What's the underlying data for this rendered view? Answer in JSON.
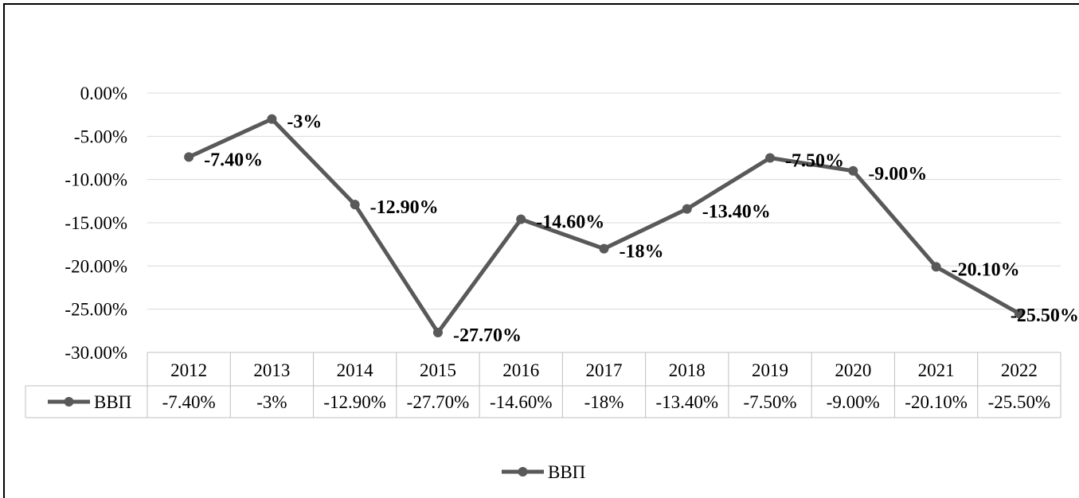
{
  "chart_data": {
    "type": "line",
    "title": "",
    "xlabel": "",
    "ylabel": "",
    "categories": [
      "2012",
      "2013",
      "2014",
      "2015",
      "2016",
      "2017",
      "2018",
      "2019",
      "2020",
      "2021",
      "2022"
    ],
    "series": [
      {
        "name": "ВВП",
        "values": [
          -7.4,
          -3.0,
          -12.9,
          -27.7,
          -14.6,
          -18.0,
          -13.4,
          -7.5,
          -9.0,
          -20.1,
          -25.5
        ],
        "labels": [
          "-7.40%",
          "-3%",
          "-12.90%",
          "-27.70%",
          "-14.60%",
          "-18%",
          "-13.40%",
          "-7.50%",
          "-9.00%",
          "-20.10%",
          "-25.50%"
        ],
        "color": "#595959"
      }
    ],
    "y_ticks": [
      "0.00%",
      "-5.00%",
      "-10.00%",
      "-15.00%",
      "-20.00%",
      "-25.00%",
      "-30.00%"
    ],
    "ylim": [
      -30,
      0
    ],
    "grid": true,
    "data_table": true,
    "legend_position": "bottom"
  }
}
